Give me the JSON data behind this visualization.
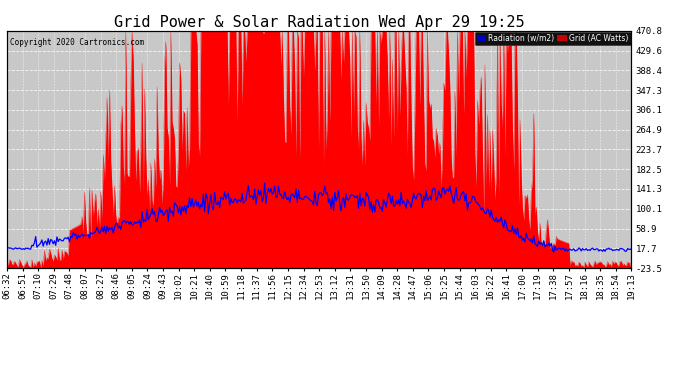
{
  "title": "Grid Power & Solar Radiation Wed Apr 29 19:25",
  "copyright": "Copyright 2020 Cartronics.com",
  "legend_radiation": "Radiation (w/m2)",
  "legend_grid": "Grid (AC Watts)",
  "ylabel_right_ticks": [
    470.8,
    429.6,
    388.4,
    347.3,
    306.1,
    264.9,
    223.7,
    182.5,
    141.3,
    100.1,
    58.9,
    17.7,
    -23.5
  ],
  "ylim": [
    -23.5,
    470.8
  ],
  "background_color": "#ffffff",
  "plot_bg_color": "#c8c8c8",
  "red_color": "#ff0000",
  "blue_color": "#0000ff",
  "title_fontsize": 11,
  "tick_fontsize": 6.5,
  "x_tick_labels": [
    "06:32",
    "06:51",
    "07:10",
    "07:29",
    "07:48",
    "08:07",
    "08:27",
    "08:46",
    "09:05",
    "09:24",
    "09:43",
    "10:02",
    "10:21",
    "10:40",
    "10:59",
    "11:18",
    "11:37",
    "11:56",
    "12:15",
    "12:34",
    "12:53",
    "13:12",
    "13:31",
    "13:50",
    "14:09",
    "14:28",
    "14:47",
    "15:06",
    "15:25",
    "15:44",
    "16:03",
    "16:22",
    "16:41",
    "17:00",
    "17:19",
    "17:38",
    "17:57",
    "18:16",
    "18:35",
    "18:54",
    "19:13"
  ]
}
